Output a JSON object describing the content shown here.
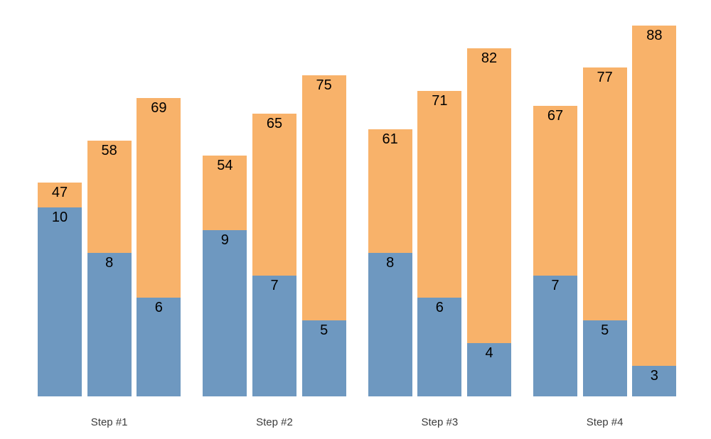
{
  "chart_data": {
    "type": "bar",
    "subtype": "grouped-overlay-stacked",
    "title": "",
    "xlabel": "",
    "ylabel": "",
    "axes_shown": false,
    "grid": false,
    "legend_position": "none",
    "background_color": "#ffffff",
    "category_label_color": "#3c3c3c",
    "value_label_color": "#000000",
    "categories": [
      "Step #1",
      "Step #2",
      "Step #3",
      "Step #4"
    ],
    "bars_per_group": 3,
    "series": [
      {
        "name": "orange-upper-total",
        "color": "#f8b26a",
        "label_placement": "inside-top",
        "values": [
          [
            47,
            58,
            69
          ],
          [
            54,
            65,
            75
          ],
          [
            61,
            71,
            82
          ],
          [
            67,
            77,
            88
          ]
        ]
      },
      {
        "name": "blue-lower",
        "color": "#6e98c0",
        "label_placement": "inside-top",
        "values": [
          [
            10,
            8,
            6
          ],
          [
            9,
            7,
            5
          ],
          [
            8,
            6,
            4
          ],
          [
            7,
            5,
            3
          ]
        ]
      }
    ]
  }
}
